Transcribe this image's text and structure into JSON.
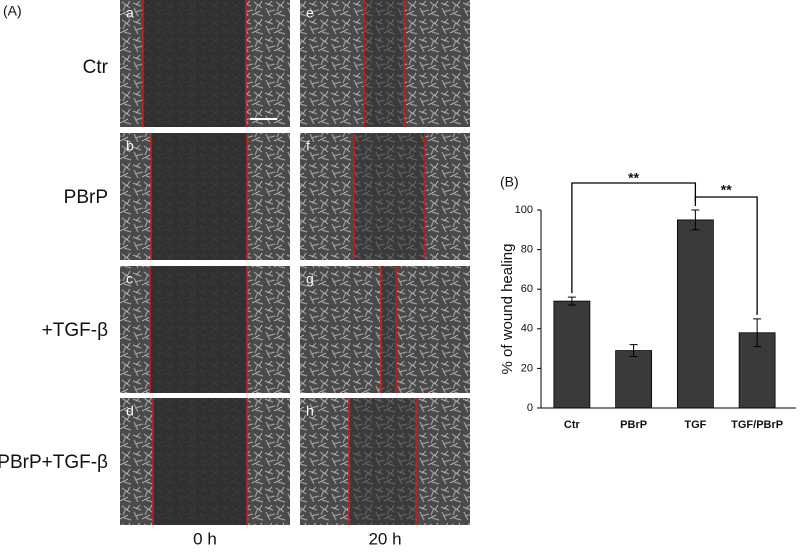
{
  "panel_a": {
    "label": "(A)",
    "rows": [
      "Ctr",
      "PBrP",
      "+TGF-β",
      "PBrP+TGF-β"
    ],
    "columns": [
      "0 h",
      "20 h"
    ],
    "letters": [
      "a",
      "b",
      "c",
      "d",
      "e",
      "f",
      "g",
      "h"
    ]
  },
  "chart_data": {
    "type": "bar",
    "panel_label": "(B)",
    "y_label": "% of wound healing",
    "categories": [
      "Ctr",
      "PBrP",
      "TGF",
      "TGF/PBrP"
    ],
    "values": [
      54,
      29,
      95,
      38
    ],
    "errors": [
      2,
      3,
      5,
      7
    ],
    "color": "#3a3a3a",
    "ylim": [
      0,
      100
    ],
    "yticks": [
      0,
      20,
      40,
      60,
      80,
      100
    ],
    "annotations": [
      "**",
      "**"
    ]
  }
}
